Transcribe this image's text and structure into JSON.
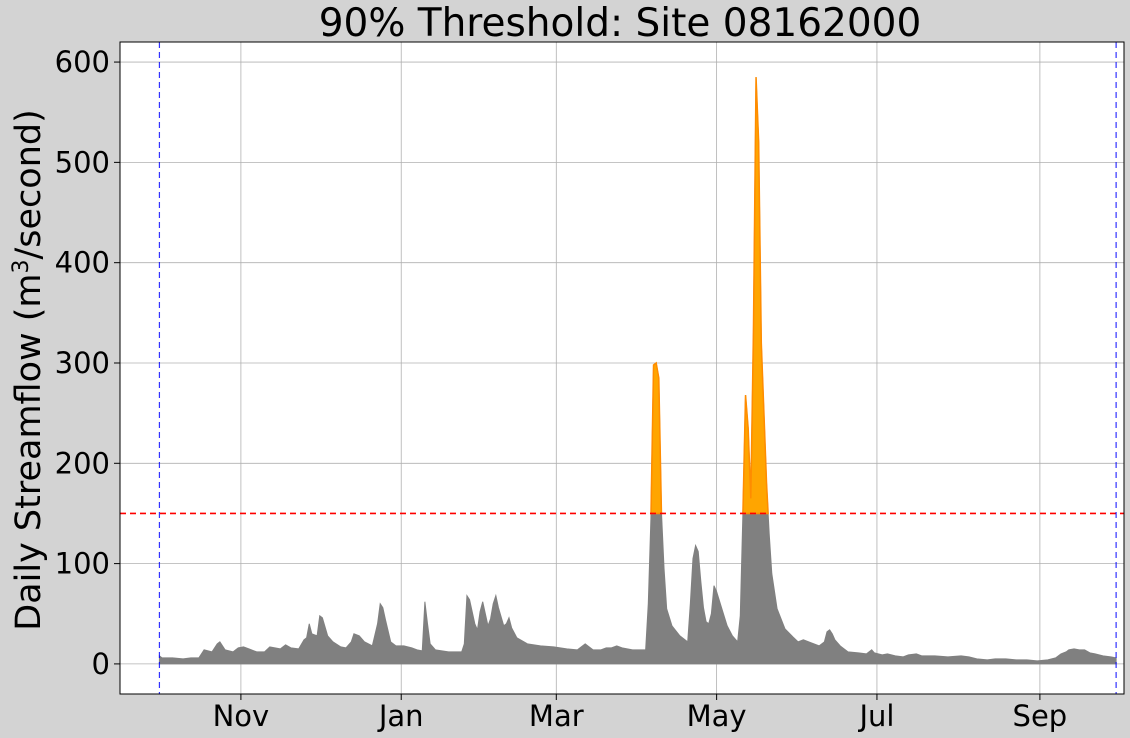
{
  "chart_data": {
    "type": "area",
    "title": "90% Threshold: Site 08162000",
    "ylabel": "Daily Streamflow (m",
    "ylabel_sup": "3",
    "ylabel_suffix": "/second)",
    "xlabel": "",
    "xlim_days": [
      -15,
      367
    ],
    "ylim": [
      -30,
      620
    ],
    "y_ticks": [
      0,
      100,
      200,
      300,
      400,
      500,
      600
    ],
    "x_ticks": [
      {
        "label": "Nov",
        "day": 31
      },
      {
        "label": "Jan",
        "day": 92
      },
      {
        "label": "Mar",
        "day": 151
      },
      {
        "label": "May",
        "day": 212
      },
      {
        "label": "Jul",
        "day": 273
      },
      {
        "label": "Sep",
        "day": 335
      }
    ],
    "grid": true,
    "threshold": {
      "value": 150,
      "color": "#ff0000",
      "style": "dashed"
    },
    "period_markers": {
      "days": [
        0,
        364
      ],
      "color": "#0000ff",
      "style": "dashed"
    },
    "colors": {
      "flow": "#808080",
      "above_threshold": "#ffa500",
      "background": "#d3d3d3",
      "plot_bg": "#ffffff"
    },
    "series": [
      {
        "type": "daily_streamflow",
        "points": [
          [
            0,
            8
          ],
          [
            1,
            6
          ],
          [
            5,
            6
          ],
          [
            9,
            5
          ],
          [
            12,
            6
          ],
          [
            15,
            6
          ],
          [
            17,
            14
          ],
          [
            20,
            12
          ],
          [
            22,
            20
          ],
          [
            23,
            22
          ],
          [
            25,
            14
          ],
          [
            28,
            12
          ],
          [
            30,
            16
          ],
          [
            32,
            17
          ],
          [
            34,
            15
          ],
          [
            37,
            12
          ],
          [
            40,
            12
          ],
          [
            42,
            17
          ],
          [
            46,
            15
          ],
          [
            48,
            19
          ],
          [
            50,
            16
          ],
          [
            53,
            15
          ],
          [
            55,
            24
          ],
          [
            56,
            26
          ],
          [
            57,
            40
          ],
          [
            58,
            30
          ],
          [
            60,
            28
          ],
          [
            61,
            48
          ],
          [
            62,
            46
          ],
          [
            64,
            28
          ],
          [
            66,
            22
          ],
          [
            69,
            17
          ],
          [
            71,
            16
          ],
          [
            73,
            22
          ],
          [
            74,
            30
          ],
          [
            76,
            28
          ],
          [
            78,
            22
          ],
          [
            81,
            18
          ],
          [
            83,
            40
          ],
          [
            84,
            60
          ],
          [
            85,
            56
          ],
          [
            86,
            44
          ],
          [
            88,
            22
          ],
          [
            90,
            18
          ],
          [
            93,
            18
          ],
          [
            96,
            16
          ],
          [
            98,
            14
          ],
          [
            100,
            13
          ],
          [
            101,
            62
          ],
          [
            102,
            40
          ],
          [
            103,
            20
          ],
          [
            105,
            14
          ],
          [
            110,
            12
          ],
          [
            115,
            12
          ],
          [
            116,
            20
          ],
          [
            117,
            68
          ],
          [
            118,
            64
          ],
          [
            120,
            40
          ],
          [
            121,
            34
          ],
          [
            122,
            52
          ],
          [
            123,
            62
          ],
          [
            124,
            50
          ],
          [
            125,
            38
          ],
          [
            126,
            45
          ],
          [
            127,
            60
          ],
          [
            128,
            68
          ],
          [
            129,
            56
          ],
          [
            131,
            38
          ],
          [
            132,
            40
          ],
          [
            133,
            46
          ],
          [
            134,
            36
          ],
          [
            136,
            26
          ],
          [
            140,
            20
          ],
          [
            145,
            18
          ],
          [
            150,
            17
          ],
          [
            155,
            15
          ],
          [
            159,
            14
          ],
          [
            162,
            20
          ],
          [
            165,
            14
          ],
          [
            168,
            14
          ],
          [
            170,
            16
          ],
          [
            172,
            16
          ],
          [
            174,
            18
          ],
          [
            176,
            16
          ],
          [
            180,
            14
          ],
          [
            185,
            14
          ],
          [
            186,
            60
          ],
          [
            187,
            145
          ],
          [
            188,
            298
          ],
          [
            189,
            300
          ],
          [
            190,
            285
          ],
          [
            191,
            152
          ],
          [
            192,
            95
          ],
          [
            193,
            55
          ],
          [
            195,
            38
          ],
          [
            198,
            28
          ],
          [
            201,
            22
          ],
          [
            202,
            60
          ],
          [
            203,
            105
          ],
          [
            204,
            118
          ],
          [
            205,
            112
          ],
          [
            206,
            82
          ],
          [
            207,
            56
          ],
          [
            208,
            42
          ],
          [
            209,
            40
          ],
          [
            210,
            50
          ],
          [
            211,
            78
          ],
          [
            212,
            72
          ],
          [
            214,
            55
          ],
          [
            216,
            38
          ],
          [
            218,
            28
          ],
          [
            220,
            22
          ],
          [
            221,
            48
          ],
          [
            222,
            150
          ],
          [
            223,
            268
          ],
          [
            224,
            235
          ],
          [
            225,
            165
          ],
          [
            226,
            330
          ],
          [
            227,
            585
          ],
          [
            228,
            520
          ],
          [
            229,
            320
          ],
          [
            230,
            250
          ],
          [
            231,
            180
          ],
          [
            232,
            130
          ],
          [
            233,
            90
          ],
          [
            235,
            55
          ],
          [
            238,
            35
          ],
          [
            241,
            27
          ],
          [
            243,
            22
          ],
          [
            245,
            24
          ],
          [
            248,
            21
          ],
          [
            251,
            18
          ],
          [
            253,
            22
          ],
          [
            254,
            32
          ],
          [
            255,
            34
          ],
          [
            256,
            30
          ],
          [
            257,
            24
          ],
          [
            259,
            18
          ],
          [
            262,
            12
          ],
          [
            266,
            11
          ],
          [
            269,
            10
          ],
          [
            271,
            14
          ],
          [
            272,
            11
          ],
          [
            275,
            9
          ],
          [
            277,
            10
          ],
          [
            280,
            8
          ],
          [
            283,
            7
          ],
          [
            285,
            9
          ],
          [
            288,
            10
          ],
          [
            290,
            8
          ],
          [
            295,
            8
          ],
          [
            300,
            7
          ],
          [
            305,
            8
          ],
          [
            308,
            7
          ],
          [
            311,
            5
          ],
          [
            315,
            4
          ],
          [
            318,
            5
          ],
          [
            322,
            5
          ],
          [
            326,
            4
          ],
          [
            330,
            4
          ],
          [
            334,
            3
          ],
          [
            338,
            4
          ],
          [
            341,
            6
          ],
          [
            343,
            10
          ],
          [
            345,
            12
          ],
          [
            346,
            14
          ],
          [
            348,
            15
          ],
          [
            350,
            14
          ],
          [
            352,
            14
          ],
          [
            354,
            11
          ],
          [
            356,
            10
          ],
          [
            359,
            8
          ],
          [
            362,
            7
          ],
          [
            364,
            6
          ]
        ]
      }
    ]
  }
}
